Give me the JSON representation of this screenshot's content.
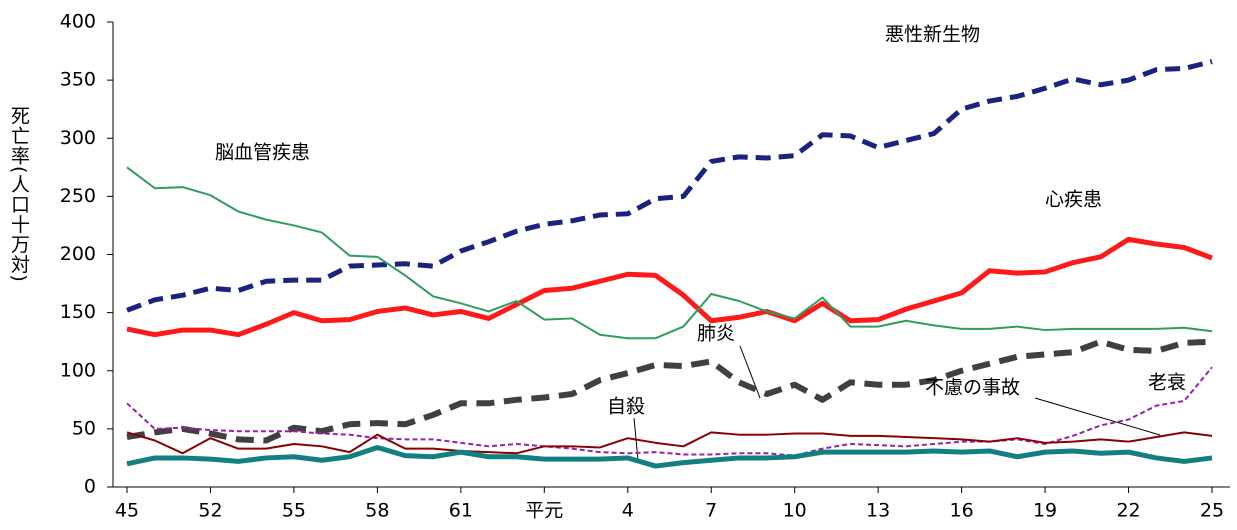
{
  "chart_data": {
    "type": "line",
    "y_label": "死亡率(人口十万対)",
    "categories": [
      "45",
      null,
      null,
      "52",
      null,
      null,
      "55",
      null,
      null,
      "58",
      null,
      null,
      "61",
      null,
      null,
      "平元",
      null,
      null,
      "4",
      null,
      null,
      "7",
      null,
      null,
      "10",
      null,
      null,
      "13",
      null,
      null,
      "16",
      null,
      null,
      "19",
      null,
      null,
      "22",
      null,
      null,
      "25"
    ],
    "ylim": [
      0,
      400
    ],
    "yticks": [
      0,
      50,
      100,
      150,
      200,
      250,
      300,
      350,
      400
    ],
    "grid": false,
    "series": [
      {
        "name": "悪性新生物",
        "color": "#1a237e",
        "style": "dashed",
        "width": 5,
        "values": [
          152,
          161,
          165,
          171,
          169,
          177,
          178,
          178,
          190,
          191,
          192,
          190,
          203,
          211,
          220,
          226,
          229,
          234,
          235,
          248,
          250,
          280,
          284,
          283,
          285,
          303,
          302,
          292,
          298,
          304,
          325,
          332,
          336,
          343,
          351,
          346,
          350,
          359,
          360,
          366
        ]
      },
      {
        "name": "心疾患",
        "color": "#ff1a1a",
        "style": "solid",
        "width": 5,
        "values": [
          136,
          131,
          135,
          135,
          131,
          140,
          150,
          143,
          144,
          151,
          154,
          148,
          151,
          145,
          157,
          169,
          171,
          177,
          183,
          182,
          165,
          143,
          146,
          151,
          143,
          158,
          143,
          144,
          153,
          160,
          167,
          186,
          184,
          185,
          193,
          198,
          213,
          209,
          206,
          197
        ]
      },
      {
        "name": "脳血管疾患",
        "color": "#2e9e5e",
        "style": "solid",
        "width": 2,
        "values": [
          275,
          257,
          258,
          251,
          237,
          230,
          225,
          219,
          199,
          198,
          182,
          164,
          158,
          151,
          160,
          144,
          145,
          131,
          128,
          128,
          138,
          166,
          160,
          151,
          145,
          163,
          138,
          138,
          143,
          139,
          136,
          136,
          138,
          135,
          136,
          136,
          136,
          136,
          137,
          134
        ]
      },
      {
        "name": "肺炎",
        "color": "#404040",
        "style": "dashed",
        "width": 6,
        "values": [
          43,
          47,
          50,
          46,
          41,
          40,
          51,
          48,
          54,
          55,
          54,
          62,
          72,
          72,
          75,
          77,
          80,
          92,
          98,
          105,
          104,
          108,
          90,
          80,
          88,
          75,
          90,
          88,
          88,
          92,
          100,
          106,
          112,
          114,
          116,
          125,
          118,
          117,
          124,
          125
        ]
      },
      {
        "name": "老衰",
        "color": "#9b1fa8",
        "style": "dashed",
        "width": 2,
        "values": [
          72,
          50,
          51,
          49,
          48,
          48,
          48,
          46,
          45,
          42,
          41,
          41,
          38,
          35,
          37,
          35,
          33,
          30,
          29,
          30,
          28,
          28,
          29,
          29,
          27,
          33,
          37,
          36,
          35,
          37,
          39,
          39,
          41,
          37,
          44,
          53,
          58,
          70,
          74,
          103
        ]
      },
      {
        "name": "不慮の事故",
        "color": "#8b0000",
        "style": "solid",
        "width": 2,
        "values": [
          47,
          40,
          29,
          42,
          33,
          33,
          37,
          35,
          30,
          45,
          33,
          33,
          31,
          30,
          29,
          35,
          35,
          34,
          42,
          38,
          35,
          47,
          45,
          45,
          46,
          46,
          44,
          44,
          43,
          42,
          41,
          39,
          42,
          38,
          39,
          41,
          39,
          43,
          47,
          44
        ]
      },
      {
        "name": "自殺",
        "color": "#128080",
        "style": "solid",
        "width": 5,
        "values": [
          20,
          25,
          25,
          24,
          22,
          25,
          26,
          23,
          26,
          34,
          27,
          26,
          30,
          26,
          26,
          24,
          24,
          24,
          25,
          18,
          21,
          23,
          25,
          25,
          26,
          30,
          30,
          30,
          30,
          31,
          30,
          31,
          26,
          30,
          31,
          29,
          30,
          25,
          22,
          25
        ]
      }
    ]
  }
}
